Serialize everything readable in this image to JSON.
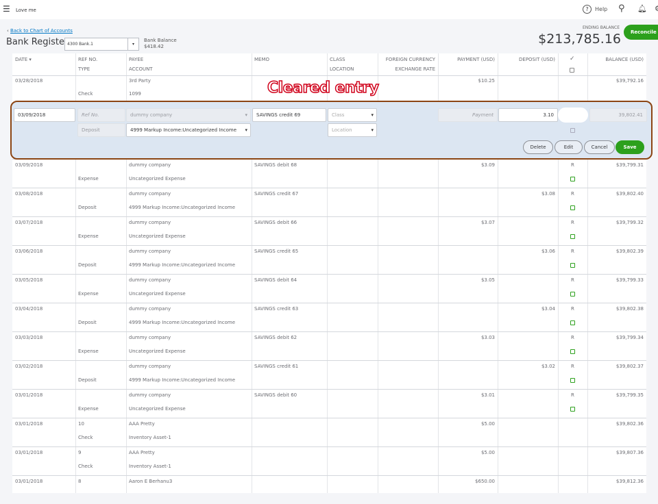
{
  "header": {
    "company": "Love me",
    "help": "Help"
  },
  "page": {
    "back_link": "Back to Chart of Accounts",
    "title": "Bank Register",
    "account": "4300 Bank.1",
    "bank_balance_label": "Bank Balance",
    "bank_balance": "$418.42",
    "ending_balance_label": "ENDING BALANCE",
    "ending_balance": "$213,785.16",
    "reconcile": "Reconcile"
  },
  "columns": {
    "date": "DATE ▾",
    "ref": "REF NO.",
    "type": "TYPE",
    "payee": "PAYEE",
    "account": "ACCOUNT",
    "memo": "MEMO",
    "class": "CLASS",
    "location": "LOCATION",
    "foreign": "FOREIGN CURRENCY",
    "exchange": "EXCHANGE RATE",
    "payment": "PAYMENT (USD)",
    "deposit": "DEPOSIT (USD)",
    "check": "✓",
    "balance": "BALANCE (USD)"
  },
  "annotation": "Cleared entry",
  "first_row": {
    "date": "03/28/2018",
    "type": "Check",
    "payee": "3rd Party",
    "account": "1099",
    "payment": "$10.25",
    "balance": "$39,792.16"
  },
  "edit_row": {
    "date": "03/09/2018",
    "ref_placeholder": "Ref No.",
    "payee": "dummy company",
    "memo": "SAVINGS credit 69",
    "class_placeholder": "Class",
    "type": "Deposit",
    "account": "4999 Markup Income:Uncategorized Income",
    "location_placeholder": "Location",
    "payment_placeholder": "Payment",
    "deposit": "3.10",
    "balance": "39,802.41",
    "delete": "Delete",
    "edit": "Edit",
    "cancel": "Cancel",
    "save": "Save"
  },
  "rows": [
    {
      "date": "03/09/2018",
      "ref": "",
      "type": "Expense",
      "payee": "dummy company",
      "account": "Uncategorized Expense",
      "memo": "SAVINGS debit 68",
      "payment": "$3.09",
      "deposit": "",
      "status": "R",
      "balance": "$39,799.31"
    },
    {
      "date": "03/08/2018",
      "ref": "",
      "type": "Deposit",
      "payee": "dummy company",
      "account": "4999 Markup Income:Uncategorized Income",
      "memo": "SAVINGS credit 67",
      "payment": "",
      "deposit": "$3.08",
      "status": "R",
      "balance": "$39,802.40"
    },
    {
      "date": "03/07/2018",
      "ref": "",
      "type": "Expense",
      "payee": "dummy company",
      "account": "Uncategorized Expense",
      "memo": "SAVINGS debit 66",
      "payment": "$3.07",
      "deposit": "",
      "status": "R",
      "balance": "$39,799.32"
    },
    {
      "date": "03/06/2018",
      "ref": "",
      "type": "Deposit",
      "payee": "dummy company",
      "account": "4999 Markup Income:Uncategorized Income",
      "memo": "SAVINGS credit 65",
      "payment": "",
      "deposit": "$3.06",
      "status": "R",
      "balance": "$39,802.39"
    },
    {
      "date": "03/05/2018",
      "ref": "",
      "type": "Expense",
      "payee": "dummy company",
      "account": "Uncategorized Expense",
      "memo": "SAVINGS debit 64",
      "payment": "$3.05",
      "deposit": "",
      "status": "R",
      "balance": "$39,799.33"
    },
    {
      "date": "03/04/2018",
      "ref": "",
      "type": "Deposit",
      "payee": "dummy company",
      "account": "4999 Markup Income:Uncategorized Income",
      "memo": "SAVINGS credit 63",
      "payment": "",
      "deposit": "$3.04",
      "status": "R",
      "balance": "$39,802.38"
    },
    {
      "date": "03/03/2018",
      "ref": "",
      "type": "Expense",
      "payee": "dummy company",
      "account": "Uncategorized Expense",
      "memo": "SAVINGS debit 62",
      "payment": "$3.03",
      "deposit": "",
      "status": "R",
      "balance": "$39,799.34"
    },
    {
      "date": "03/02/2018",
      "ref": "",
      "type": "Deposit",
      "payee": "dummy company",
      "account": "4999 Markup Income:Uncategorized Income",
      "memo": "SAVINGS credit 61",
      "payment": "",
      "deposit": "$3.02",
      "status": "R",
      "balance": "$39,802.37"
    },
    {
      "date": "03/01/2018",
      "ref": "",
      "type": "Expense",
      "payee": "dummy company",
      "account": "Uncategorized Expense",
      "memo": "SAVINGS debit 60",
      "payment": "$3.01",
      "deposit": "",
      "status": "R",
      "balance": "$39,799.35"
    },
    {
      "date": "03/01/2018",
      "ref": "10",
      "type": "Check",
      "payee": "AAA Pretty",
      "account": "Inventory Asset-1",
      "memo": "",
      "payment": "$5.00",
      "deposit": "",
      "status": "",
      "balance": "$39,802.36"
    },
    {
      "date": "03/01/2018",
      "ref": "9",
      "type": "Check",
      "payee": "AAA Pretty",
      "account": "Inventory Asset-1",
      "memo": "",
      "payment": "$5.00",
      "deposit": "",
      "status": "",
      "balance": "$39,807.36"
    },
    {
      "date": "03/01/2018",
      "ref": "8",
      "type": "",
      "payee": "Aaron E Berhanu3",
      "account": "",
      "memo": "",
      "payment": "$650.00",
      "deposit": "",
      "status": "",
      "balance": "$39,812.36"
    }
  ],
  "colors": {
    "accent": "#2ca01c",
    "link": "#0077c5",
    "highlight": "#b45309",
    "annotation": "#d0021b",
    "edit_bg": "#dce6f2"
  }
}
